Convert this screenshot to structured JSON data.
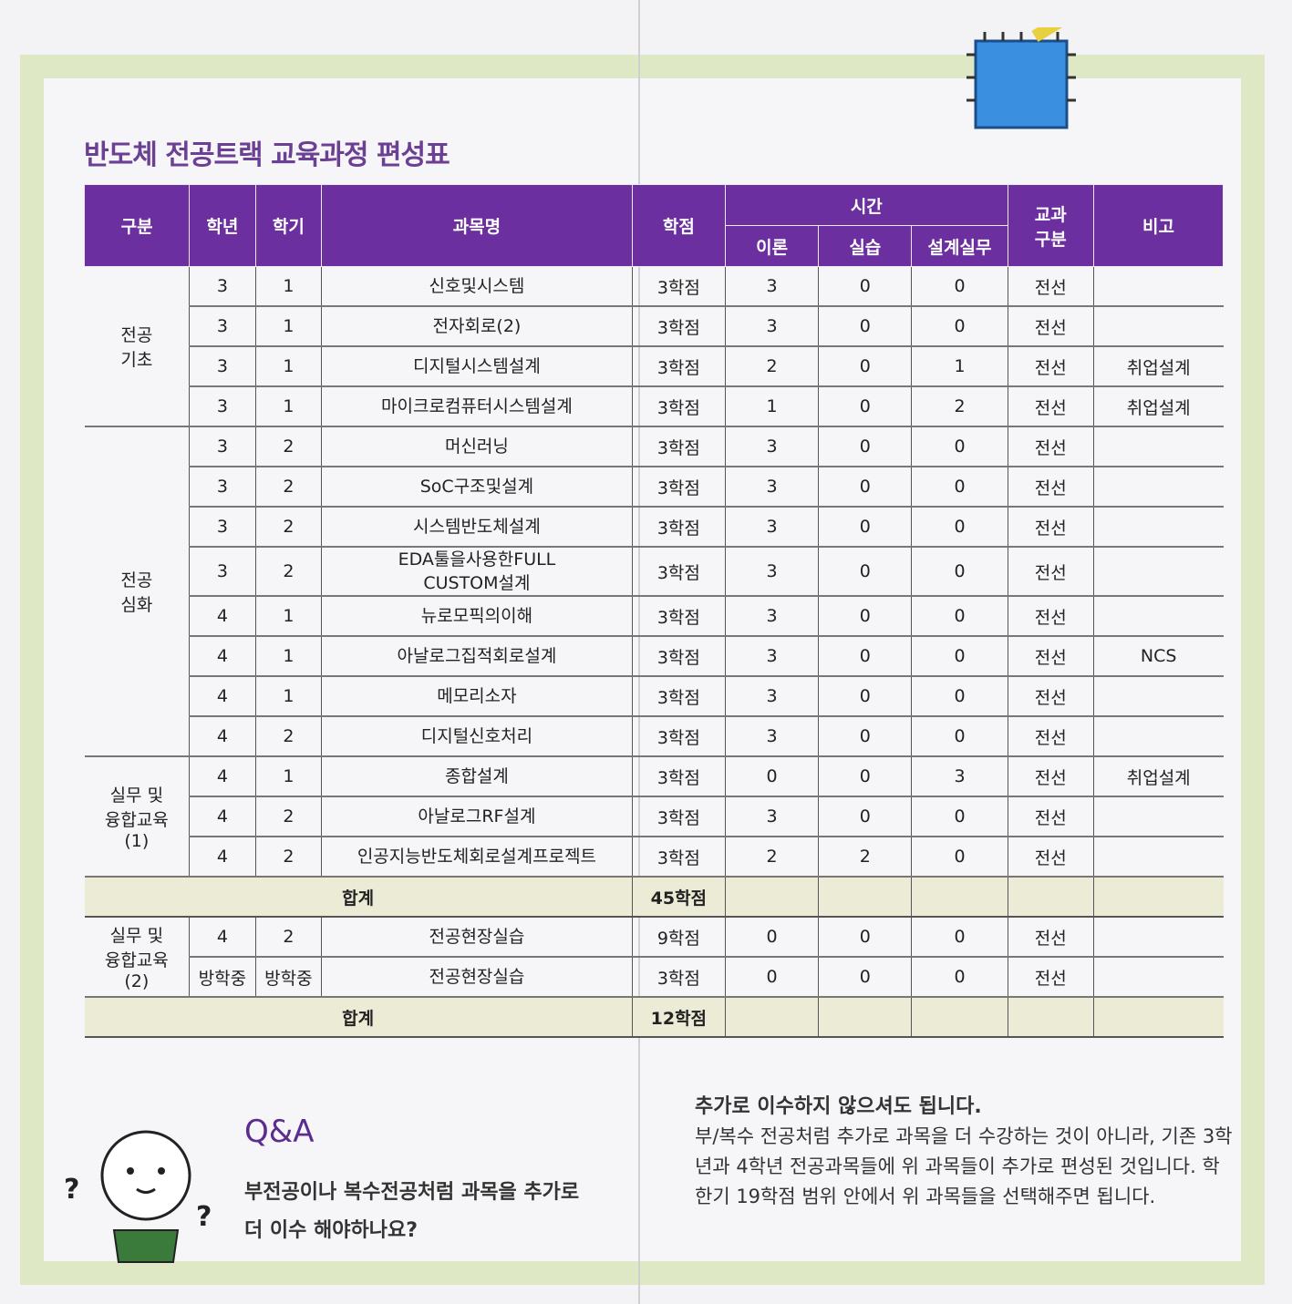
{
  "title": "반도체 전공트랙 교육과정 편성표",
  "headers": {
    "category": "구분",
    "year": "학년",
    "semester": "학기",
    "course": "과목명",
    "credits": "학점",
    "hours": "시간",
    "theory": "이론",
    "practice": "실습",
    "design": "설계실무",
    "course_type": "교과\n구분",
    "note": "비고"
  },
  "groups": [
    {
      "label": "전공\n기초",
      "rows": [
        {
          "year": "3",
          "semester": "1",
          "course": "신호및시스템",
          "credits": "3학점",
          "theory": "3",
          "practice": "0",
          "design": "0",
          "type": "전선",
          "note": ""
        },
        {
          "year": "3",
          "semester": "1",
          "course": "전자회로(2)",
          "credits": "3학점",
          "theory": "3",
          "practice": "0",
          "design": "0",
          "type": "전선",
          "note": ""
        },
        {
          "year": "3",
          "semester": "1",
          "course": "디지털시스템설계",
          "credits": "3학점",
          "theory": "2",
          "practice": "0",
          "design": "1",
          "type": "전선",
          "note": "취업설계"
        },
        {
          "year": "3",
          "semester": "1",
          "course": "마이크로컴퓨터시스템설계",
          "credits": "3학점",
          "theory": "1",
          "practice": "0",
          "design": "2",
          "type": "전선",
          "note": "취업설계"
        }
      ]
    },
    {
      "label": "전공\n심화",
      "rows": [
        {
          "year": "3",
          "semester": "2",
          "course": "머신러닝",
          "credits": "3학점",
          "theory": "3",
          "practice": "0",
          "design": "0",
          "type": "전선",
          "note": ""
        },
        {
          "year": "3",
          "semester": "2",
          "course": "SoC구조및설계",
          "credits": "3학점",
          "theory": "3",
          "practice": "0",
          "design": "0",
          "type": "전선",
          "note": ""
        },
        {
          "year": "3",
          "semester": "2",
          "course": "시스템반도체설계",
          "credits": "3학점",
          "theory": "3",
          "practice": "0",
          "design": "0",
          "type": "전선",
          "note": ""
        },
        {
          "year": "3",
          "semester": "2",
          "course": "EDA툴을사용한FULL\nCUSTOM설계",
          "credits": "3학점",
          "theory": "3",
          "practice": "0",
          "design": "0",
          "type": "전선",
          "note": ""
        },
        {
          "year": "4",
          "semester": "1",
          "course": "뉴로모픽의이해",
          "credits": "3학점",
          "theory": "3",
          "practice": "0",
          "design": "0",
          "type": "전선",
          "note": ""
        },
        {
          "year": "4",
          "semester": "1",
          "course": "아날로그집적회로설계",
          "credits": "3학점",
          "theory": "3",
          "practice": "0",
          "design": "0",
          "type": "전선",
          "note": "NCS"
        },
        {
          "year": "4",
          "semester": "1",
          "course": "메모리소자",
          "credits": "3학점",
          "theory": "3",
          "practice": "0",
          "design": "0",
          "type": "전선",
          "note": ""
        },
        {
          "year": "4",
          "semester": "2",
          "course": "디지털신호처리",
          "credits": "3학점",
          "theory": "3",
          "practice": "0",
          "design": "0",
          "type": "전선",
          "note": ""
        }
      ]
    },
    {
      "label": "실무 및\n융합교육\n(1)",
      "rows": [
        {
          "year": "4",
          "semester": "1",
          "course": "종합설계",
          "credits": "3학점",
          "theory": "0",
          "practice": "0",
          "design": "3",
          "type": "전선",
          "note": "취업설계"
        },
        {
          "year": "4",
          "semester": "2",
          "course": "아날로그RF설계",
          "credits": "3학점",
          "theory": "3",
          "practice": "0",
          "design": "0",
          "type": "전선",
          "note": ""
        },
        {
          "year": "4",
          "semester": "2",
          "course": "인공지능반도체회로설계프로젝트",
          "credits": "3학점",
          "theory": "2",
          "practice": "2",
          "design": "0",
          "type": "전선",
          "note": ""
        }
      ]
    },
    {
      "sum_label": "합계",
      "sum_credits": "45학점"
    },
    {
      "label": "실무 및\n융합교육\n(2)",
      "rows": [
        {
          "year": "4",
          "semester": "2",
          "course": "전공현장실습",
          "credits": "9학점",
          "theory": "0",
          "practice": "0",
          "design": "0",
          "type": "전선",
          "note": ""
        },
        {
          "year": "방학중",
          "semester": "방학중",
          "course": "전공현장실습",
          "credits": "3학점",
          "theory": "0",
          "practice": "0",
          "design": "0",
          "type": "전선",
          "note": ""
        }
      ]
    },
    {
      "sum_label": "합계",
      "sum_credits": "12학점"
    }
  ],
  "qa": {
    "heading": "Q&A",
    "question": "부전공이나 복수전공처럼 과목을 추가로\n더 이수 해야하나요?",
    "answer_title": "추가로 이수하지 않으셔도 됩니다.",
    "answer_body": "부/복수 전공처럼 추가로 과목을 더 수강하는 것이 아니라, 기존 3학년과 4학년 전공과목들에 위 과목들이 추가로 편성된 것입니다. 학 한기 19학점 범위 안에서 위 과목들을 선택해주면 됩니다."
  },
  "colors": {
    "header_purple": "#6b2fa0",
    "sum_row": "#ecebd6",
    "frame_green": "#dfe8c4",
    "title_purple": "#6b3f93"
  }
}
